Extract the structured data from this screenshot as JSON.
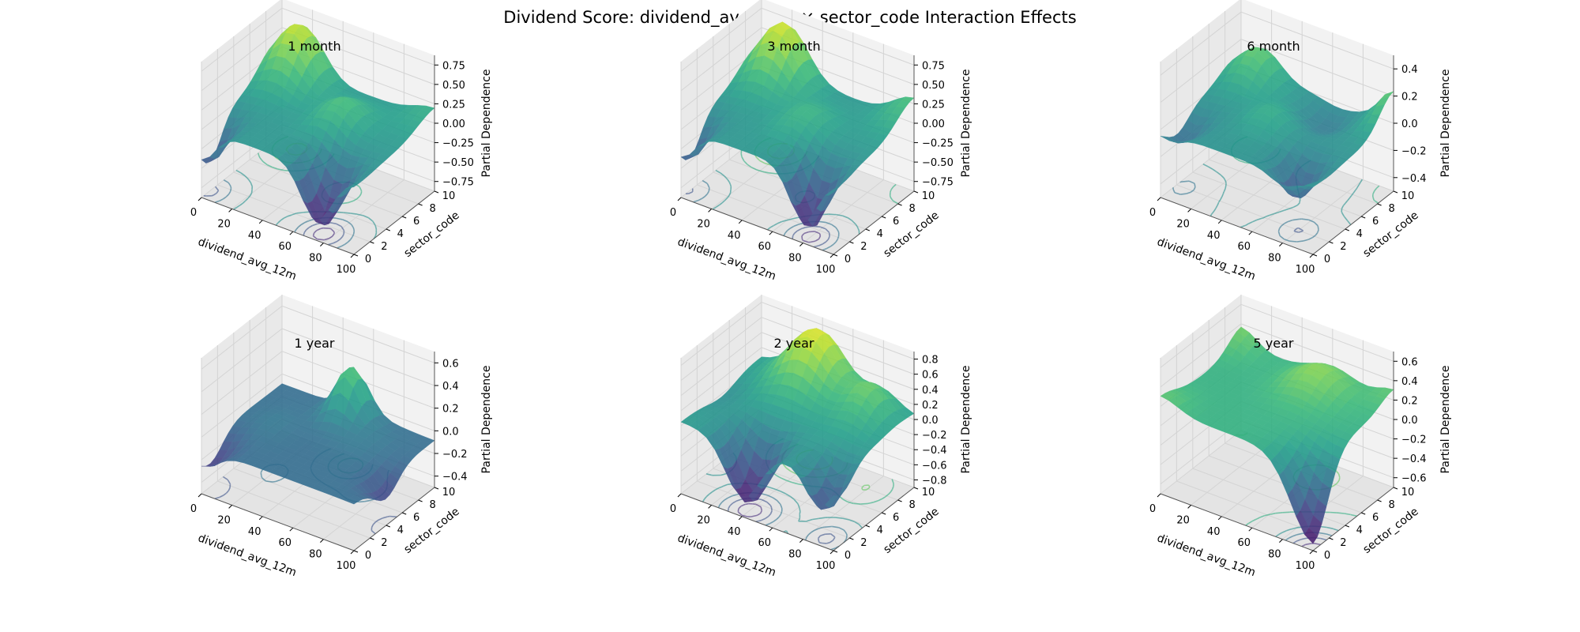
{
  "figure": {
    "title": "Dividend Score: dividend_avg_12m × sector_code Interaction Effects"
  },
  "colors": {
    "pane": "#f2f2f2",
    "pane_side": "#e9e9e9",
    "pane_floor": "#e4e4e4",
    "grid": "#d4d4d4",
    "axis": "#000000",
    "colormap": "viridis"
  },
  "chart_data": [
    {
      "type": "surface3d",
      "title": "1 month",
      "xlabel": "dividend_avg_12m",
      "ylabel": "sector_code",
      "zlabel": "Partial Dependence",
      "xticks": [
        "0",
        "20",
        "40",
        "60",
        "80",
        "100"
      ],
      "yticks": [
        "0",
        "2",
        "4",
        "6",
        "8",
        "10"
      ],
      "zticks": [
        "−0.75",
        "−0.50",
        "−0.25",
        "0.00",
        "0.25",
        "0.50",
        "0.75"
      ],
      "xlim": [
        0,
        100
      ],
      "ylim": [
        0,
        10
      ],
      "zlim": [
        -0.85,
        0.85
      ],
      "surface": {
        "base": 0.02,
        "amp": 0.85,
        "bumps": [
          [
            15,
            9,
            0.8,
            18,
            2.6
          ],
          [
            75,
            1,
            -0.9,
            14,
            2.2
          ],
          [
            0,
            1,
            -0.6,
            12,
            2.0
          ],
          [
            60,
            6,
            0.35,
            15,
            2.4
          ],
          [
            100,
            10,
            0.2,
            20,
            3.0
          ]
        ]
      },
      "contours_on_floor": true
    },
    {
      "type": "surface3d",
      "title": "3 month",
      "xlabel": "dividend_avg_12m",
      "ylabel": "sector_code",
      "zlabel": "Partial Dependence",
      "xticks": [
        "0",
        "20",
        "40",
        "60",
        "80",
        "100"
      ],
      "yticks": [
        "0",
        "2",
        "4",
        "6",
        "8",
        "10"
      ],
      "zticks": [
        "−0.75",
        "−0.50",
        "−0.25",
        "0.00",
        "0.25",
        "0.50",
        "0.75"
      ],
      "xlim": [
        0,
        100
      ],
      "ylim": [
        0,
        10
      ],
      "zlim": [
        -0.85,
        0.85
      ],
      "surface": {
        "base": 0.02,
        "amp": 0.85,
        "bumps": [
          [
            18,
            9,
            0.85,
            18,
            2.6
          ],
          [
            80,
            1,
            -0.9,
            13,
            2.0
          ],
          [
            0,
            1,
            -0.55,
            12,
            2.0
          ],
          [
            55,
            5,
            0.25,
            16,
            2.6
          ],
          [
            100,
            10,
            0.35,
            18,
            3.0
          ]
        ]
      },
      "contours_on_floor": true
    },
    {
      "type": "surface3d",
      "title": "6 month",
      "xlabel": "dividend_avg_12m",
      "ylabel": "sector_code",
      "zlabel": "Partial Dependence",
      "xticks": [
        "0",
        "20",
        "40",
        "60",
        "80",
        "100"
      ],
      "yticks": [
        "0",
        "2",
        "4",
        "6",
        "8",
        "10"
      ],
      "zticks": [
        "−0.4",
        "−0.2",
        "0.0",
        "0.2",
        "0.4"
      ],
      "xlim": [
        0,
        100
      ],
      "ylim": [
        0,
        10
      ],
      "zlim": [
        -0.48,
        0.48
      ],
      "surface": {
        "base": 0.0,
        "amp": 0.5,
        "bumps": [
          [
            15,
            9,
            0.45,
            16,
            2.4
          ],
          [
            80,
            2,
            -0.5,
            12,
            1.8
          ],
          [
            5,
            2,
            -0.3,
            12,
            2.0
          ],
          [
            45,
            5,
            0.2,
            14,
            2.2
          ],
          [
            100,
            10,
            0.45,
            12,
            2.4
          ],
          [
            65,
            8,
            -0.2,
            14,
            2.0
          ]
        ]
      },
      "contours_on_floor": true
    },
    {
      "type": "surface3d",
      "title": "1 year",
      "xlabel": "dividend_avg_12m",
      "ylabel": "sector_code",
      "zlabel": "Partial Dependence",
      "xticks": [
        "0",
        "20",
        "40",
        "60",
        "80",
        "100"
      ],
      "yticks": [
        "0",
        "2",
        "4",
        "6",
        "8",
        "10"
      ],
      "zticks": [
        "−0.4",
        "−0.2",
        "0.0",
        "0.2",
        "0.4",
        "0.6"
      ],
      "xlim": [
        0,
        100
      ],
      "ylim": [
        0,
        10
      ],
      "zlim": [
        -0.48,
        0.62
      ],
      "surface": {
        "base": -0.1,
        "amp": 0.55,
        "bumps": [
          [
            50,
            9,
            0.75,
            12,
            1.8
          ],
          [
            0,
            1,
            -0.35,
            14,
            2.2
          ],
          [
            100,
            4,
            -0.3,
            10,
            2.0
          ],
          [
            70,
            7,
            0.1,
            15,
            2.4
          ],
          [
            20,
            5,
            0.08,
            14,
            2.4
          ]
        ]
      },
      "contours_on_floor": true
    },
    {
      "type": "surface3d",
      "title": "2 year",
      "xlabel": "dividend_avg_12m",
      "ylabel": "sector_code",
      "zlabel": "Partial Dependence",
      "xticks": [
        "0",
        "20",
        "40",
        "60",
        "80",
        "100"
      ],
      "yticks": [
        "0",
        "2",
        "4",
        "6",
        "8",
        "10"
      ],
      "zticks": [
        "−0.8",
        "−0.6",
        "−0.4",
        "−0.2",
        "0.0",
        "0.2",
        "0.4",
        "0.6",
        "0.8"
      ],
      "xlim": [
        0,
        100
      ],
      "ylim": [
        0,
        10
      ],
      "zlim": [
        -0.85,
        0.85
      ],
      "surface": {
        "base": 0.05,
        "amp": 0.9,
        "bumps": [
          [
            40,
            9,
            0.8,
            22,
            2.8
          ],
          [
            40,
            1,
            -0.9,
            16,
            2.2
          ],
          [
            90,
            1,
            -0.6,
            12,
            2.0
          ],
          [
            80,
            8,
            0.4,
            14,
            2.4
          ],
          [
            0,
            5,
            -0.1,
            14,
            2.4
          ]
        ]
      },
      "contours_on_floor": true
    },
    {
      "type": "surface3d",
      "title": "5 year",
      "xlabel": "dividend_avg_12m",
      "ylabel": "sector_code",
      "zlabel": "Partial Dependence",
      "xticks": [
        "0",
        "20",
        "40",
        "60",
        "80",
        "100"
      ],
      "yticks": [
        "0",
        "2",
        "4",
        "6",
        "8",
        "10"
      ],
      "zticks": [
        "−0.6",
        "−0.4",
        "−0.2",
        "0.0",
        "0.2",
        "0.4",
        "0.6"
      ],
      "xlim": [
        0,
        100
      ],
      "ylim": [
        0,
        10
      ],
      "zlim": [
        -0.7,
        0.65
      ],
      "surface": {
        "base": 0.15,
        "amp": 0.6,
        "bumps": [
          [
            100,
            0,
            -1.3,
            20,
            2.6
          ],
          [
            60,
            8,
            0.4,
            20,
            2.6
          ],
          [
            0,
            10,
            0.3,
            14,
            2.2
          ],
          [
            0,
            0,
            0.2,
            16,
            2.6
          ],
          [
            100,
            10,
            0.2,
            14,
            2.2
          ]
        ]
      },
      "contours_on_floor": true
    }
  ]
}
